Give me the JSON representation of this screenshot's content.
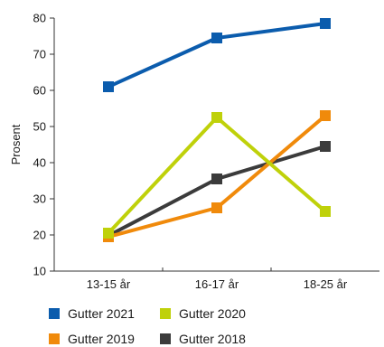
{
  "chart_data": {
    "type": "line",
    "title": "",
    "xlabel": "",
    "ylabel": "Prosent",
    "categories": [
      "13-15 år",
      "16-17 år",
      "18-25 år"
    ],
    "ylim": [
      10,
      80
    ],
    "yticks": [
      10,
      20,
      30,
      40,
      50,
      60,
      70,
      80
    ],
    "grid": false,
    "legend_position": "bottom",
    "series": [
      {
        "name": "Gutter 2021",
        "color": "#0b5cad",
        "values": [
          61,
          74.5,
          78.5
        ]
      },
      {
        "name": "Gutter 2020",
        "color": "#bfd10a",
        "values": [
          20.5,
          52.5,
          26.5
        ]
      },
      {
        "name": "Gutter 2019",
        "color": "#f08a0b",
        "values": [
          19.5,
          27.5,
          53
        ]
      },
      {
        "name": "Gutter 2018",
        "color": "#3b3b3b",
        "values": [
          19.8,
          35.5,
          44.5
        ]
      }
    ]
  }
}
